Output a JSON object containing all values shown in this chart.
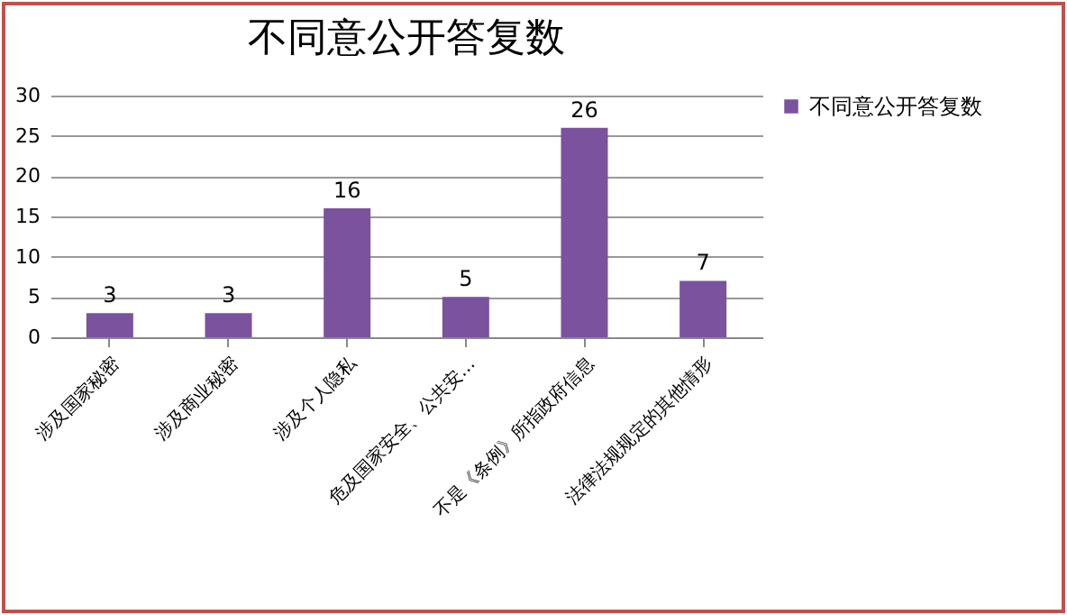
{
  "chart_data": {
    "type": "bar",
    "title": "不同意公开答复数",
    "categories": [
      "涉及国家秘密",
      "涉及商业秘密",
      "涉及个人隐私",
      "危及国家安全、公共安…",
      "不是《条例》所指政府信息",
      "法律法规规定的其他情形"
    ],
    "series": [
      {
        "name": "不同意公开答复数",
        "color": "#7a529e",
        "values": [
          3,
          3,
          16,
          5,
          26,
          7
        ]
      }
    ],
    "ylim": [
      0,
      30
    ],
    "yticks": [
      0,
      5,
      10,
      15,
      20,
      25,
      30
    ],
    "grid": "y",
    "legend": "right",
    "data_labels": true
  }
}
